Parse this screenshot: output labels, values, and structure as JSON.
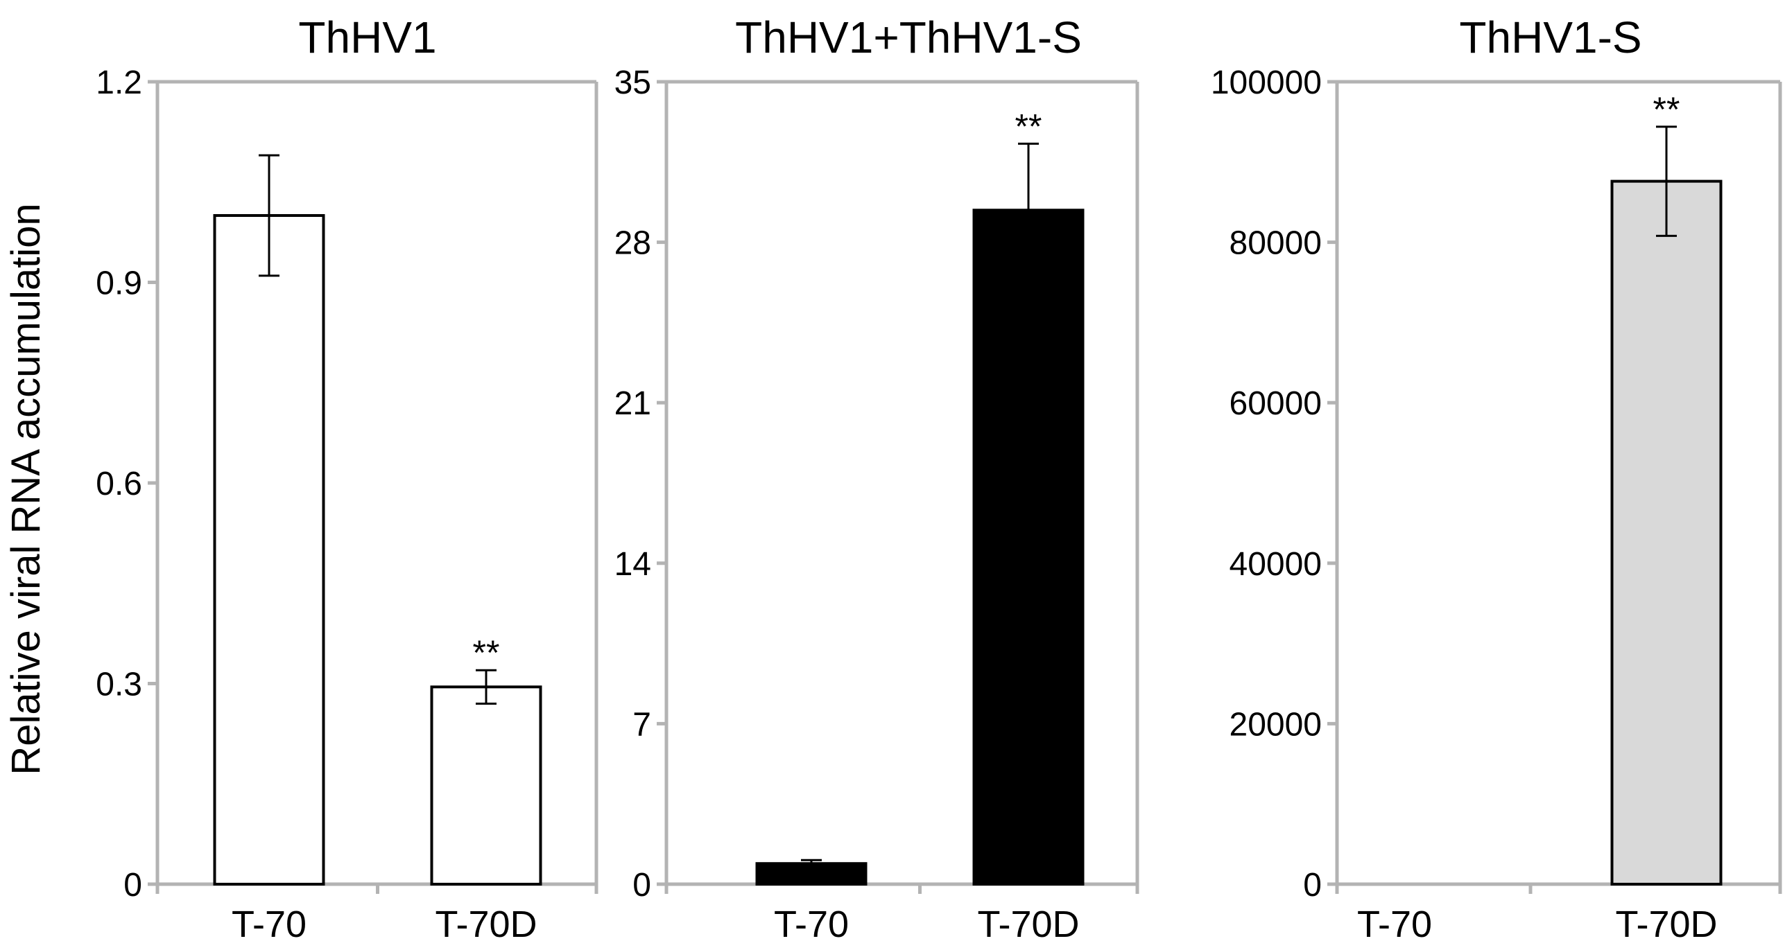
{
  "ylabel": "Relative viral RNA accumulation",
  "colors": {
    "axis": "#b3b3b3",
    "errorbar": "#000000"
  },
  "chart_data": [
    {
      "type": "bar",
      "title": "ThHV1",
      "categories": [
        "T-70",
        "T-70D"
      ],
      "values": [
        1.0,
        0.295
      ],
      "errors": [
        0.09,
        0.025
      ],
      "annotations": [
        "",
        "**"
      ],
      "ylim": [
        0,
        1.2
      ],
      "yticks": [
        0,
        0.3,
        0.6,
        0.9,
        1.2
      ],
      "ytick_labels": [
        "0",
        "0.3",
        "0.6",
        "0.9",
        "1.2"
      ],
      "bar_fill": "#ffffff",
      "bar_stroke": "#000000",
      "grid": false
    },
    {
      "type": "bar",
      "title": "ThHV1+ThHV1-S",
      "categories": [
        "T-70",
        "T-70D"
      ],
      "values": [
        0.9,
        29.4
      ],
      "errors": [
        0.15,
        2.9
      ],
      "annotations": [
        "",
        "**"
      ],
      "ylim": [
        0,
        35
      ],
      "yticks": [
        0,
        7,
        14,
        21,
        28,
        35
      ],
      "ytick_labels": [
        "0",
        "7",
        "14",
        "21",
        "28",
        "35"
      ],
      "bar_fill": "#000000",
      "bar_stroke": "#000000",
      "grid": false
    },
    {
      "type": "bar",
      "title": "ThHV1-S",
      "categories": [
        "T-70",
        "T-70D"
      ],
      "values": [
        0,
        87600
      ],
      "errors": [
        0,
        6800
      ],
      "annotations": [
        "",
        "**"
      ],
      "ylim": [
        0,
        100000
      ],
      "yticks": [
        0,
        20000,
        40000,
        60000,
        80000,
        100000
      ],
      "ytick_labels": [
        "0",
        "20000",
        "40000",
        "60000",
        "80000",
        "100000"
      ],
      "bar_fill": "#d9d9d9",
      "bar_stroke": "#000000",
      "grid": false
    }
  ]
}
